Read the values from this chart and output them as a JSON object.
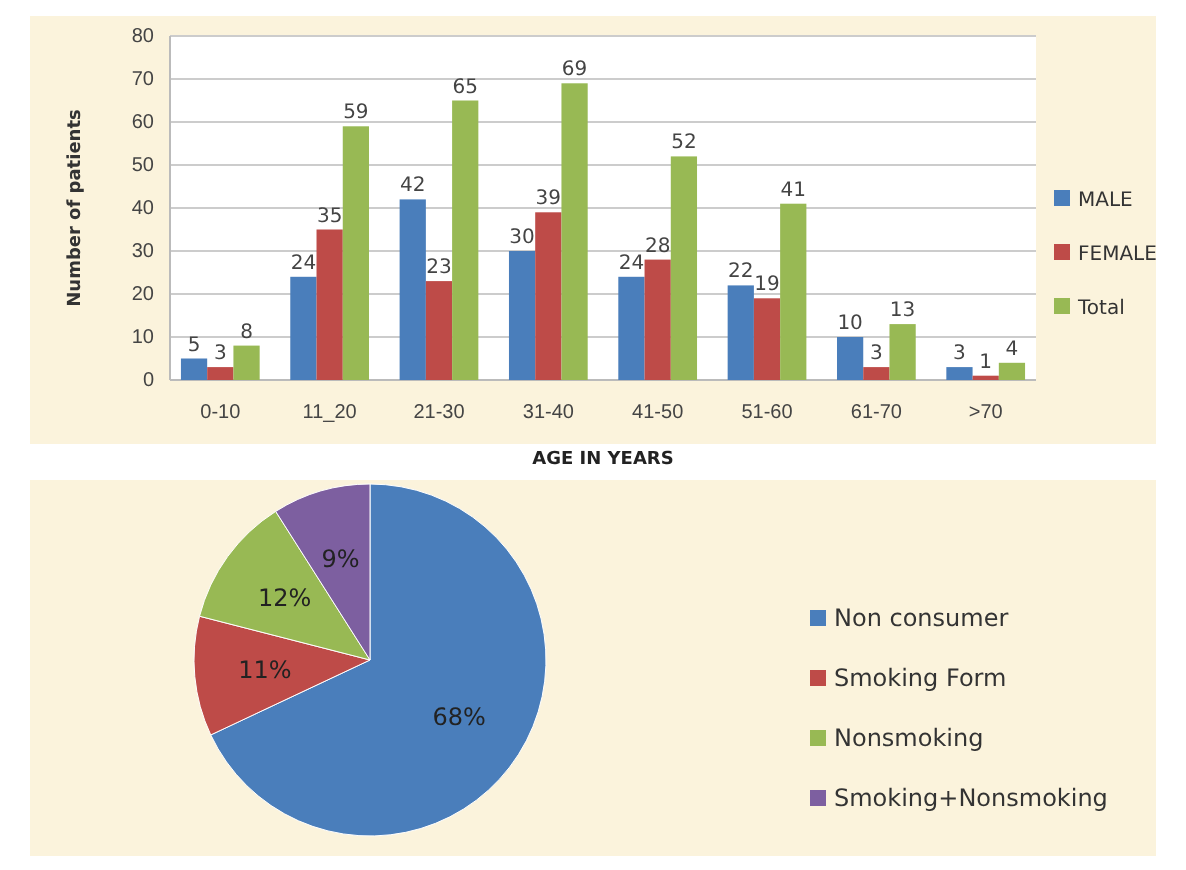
{
  "chart_data": [
    {
      "type": "bar",
      "xlabel": "AGE IN YEARS",
      "ylabel": "Number of patients",
      "categories": [
        "0-10",
        "11_20",
        "21-30",
        "31-40",
        "41-50",
        "51-60",
        "61-70",
        ">70"
      ],
      "series": [
        {
          "name": "MALE",
          "color": "#4a7ebb",
          "values": [
            5,
            24,
            42,
            30,
            24,
            22,
            10,
            3
          ]
        },
        {
          "name": "FEMALE",
          "color": "#be4b48",
          "values": [
            3,
            35,
            23,
            39,
            28,
            19,
            3,
            1
          ]
        },
        {
          "name": "Total",
          "color": "#98b954",
          "values": [
            8,
            59,
            65,
            69,
            52,
            41,
            13,
            4
          ]
        }
      ],
      "ylim": [
        0,
        80
      ],
      "yticks": [
        0,
        10,
        20,
        30,
        40,
        50,
        60,
        70,
        80
      ],
      "grid": "y",
      "legend": "right",
      "data_labels": true
    },
    {
      "type": "pie",
      "categories": [
        "Non consumer",
        "Smoking Form",
        "Nonsmoking",
        "Smoking+Nonsmoking"
      ],
      "values": [
        68,
        11,
        12,
        9
      ],
      "value_labels": [
        "68%",
        "11%",
        "12%",
        "9%"
      ],
      "colors": [
        "#4a7ebb",
        "#be4b48",
        "#98b954",
        "#7d5fa0"
      ],
      "legend": "right"
    }
  ]
}
